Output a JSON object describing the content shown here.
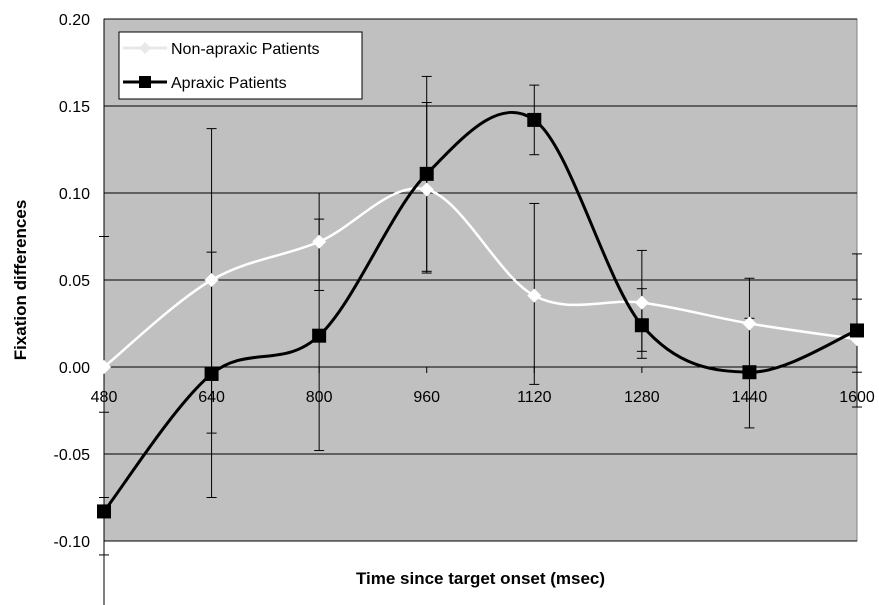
{
  "chart_data": {
    "type": "line",
    "title": "",
    "xlabel": "Time since target onset (msec)",
    "ylabel": "Fixation differences",
    "x": [
      480,
      640,
      800,
      960,
      1120,
      1280,
      1440,
      1600
    ],
    "x_tick_labels": [
      "480",
      "640",
      "800",
      "960",
      "1120",
      "1280",
      "1440",
      "1600"
    ],
    "y_tick_labels": [
      "0.20",
      "0.15",
      "0.10",
      "0.05",
      "0.00",
      "-0.05",
      "-0.10"
    ],
    "ylim": [
      -0.1,
      0.2
    ],
    "xlim": [
      480,
      1600
    ],
    "grid": true,
    "legend_position": "top-left",
    "background_color": "#c0c0c0",
    "series": [
      {
        "name": "Non-apraxic Patients",
        "color": "#ffffff",
        "marker": "diamond",
        "values": [
          0.0,
          0.05,
          0.072,
          0.102,
          0.041,
          0.037,
          0.025,
          0.016
        ],
        "error_upper": [
          0.075,
          0.137,
          0.1,
          0.152,
          0.094,
          0.067,
          0.051,
          0.039
        ],
        "error_lower": [
          -0.026,
          -0.038,
          0.044,
          0.055,
          -0.01,
          0.009,
          -0.001,
          -0.003
        ]
      },
      {
        "name": "Apraxic Patients",
        "color": "#000000",
        "marker": "square",
        "values": [
          -0.083,
          -0.004,
          0.018,
          0.111,
          0.142,
          0.024,
          -0.003,
          0.021
        ],
        "error_upper": [
          -0.075,
          0.066,
          0.085,
          0.167,
          0.162,
          0.045,
          0.028,
          0.065
        ],
        "error_lower": [
          -0.108,
          -0.075,
          -0.048,
          0.054,
          0.122,
          0.005,
          -0.035,
          -0.023
        ]
      }
    ]
  }
}
